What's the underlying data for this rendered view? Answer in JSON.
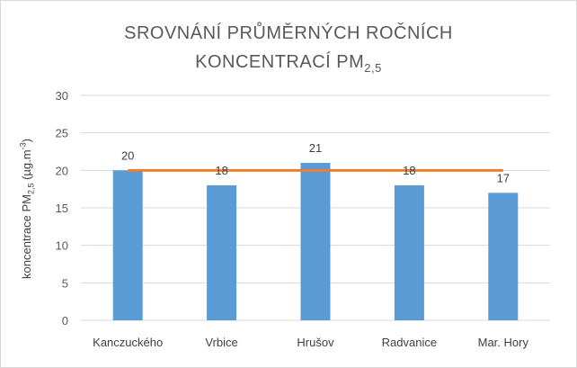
{
  "title_line1": "SROVNÁNÍ PRŮMĚRNÝCH ROČNÍCH",
  "title_line2_main": "KONCENTRACÍ PM",
  "title_line2_sub": "2,5",
  "ylabel_main": "koncentrace PM",
  "ylabel_sub": "2,5",
  "ylabel_unit_open": " (µg.m",
  "ylabel_unit_sup": "-3",
  "ylabel_unit_close": ")",
  "colors": {
    "bar": "#5b9bd5",
    "line": "#ed7d31",
    "grid": "#d9d9d9",
    "text": "#595959"
  },
  "chart_data": {
    "type": "bar",
    "categories": [
      "Kanczuckého",
      "Vrbice",
      "Hrušov",
      "Radvanice",
      "Mar. Hory"
    ],
    "values": [
      20,
      18,
      21,
      18,
      17
    ],
    "data_labels": [
      "20",
      "18",
      "21",
      "18",
      "17"
    ],
    "yticks": [
      0,
      5,
      10,
      15,
      20,
      25,
      30
    ],
    "ylim": [
      0,
      30
    ],
    "reference_line": {
      "value": 20
    },
    "grid": true,
    "legend": "none"
  }
}
